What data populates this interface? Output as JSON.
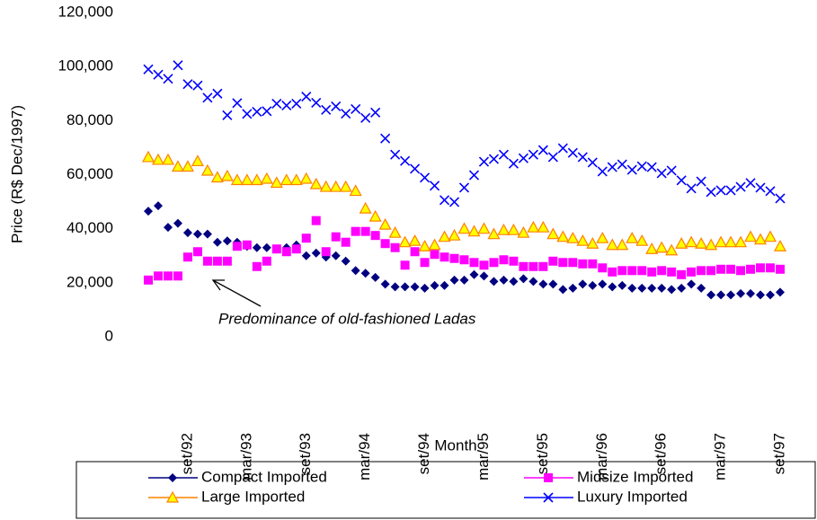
{
  "chart_data": {
    "type": "scatter",
    "y_label": "Price (R$ Dec/1997)",
    "x_label": "Month",
    "annotation": "Predominance of old-fashioned Ladas",
    "categories": [
      null,
      null,
      null,
      null,
      "set/92",
      null,
      null,
      null,
      null,
      null,
      "mar/93",
      null,
      null,
      null,
      null,
      null,
      "set/93",
      null,
      null,
      null,
      null,
      null,
      "mar/94",
      null,
      null,
      null,
      null,
      null,
      "set/94",
      null,
      null,
      null,
      null,
      null,
      "mar/95",
      null,
      null,
      null,
      null,
      null,
      "set/95",
      null,
      null,
      null,
      null,
      null,
      "mar/96",
      null,
      null,
      null,
      null,
      null,
      "set/96",
      null,
      null,
      null,
      null,
      null,
      "mar/97",
      null,
      null,
      null,
      null,
      null,
      "set/97"
    ],
    "ylim": [
      0,
      120000
    ],
    "yticks": [
      0,
      {
        "value": 20000,
        "label": "20,000"
      },
      {
        "value": 40000,
        "label": "40,000"
      },
      {
        "value": 60000,
        "label": "60,000"
      },
      {
        "value": 80000,
        "label": "80,000"
      },
      {
        "value": 100000,
        "label": "100,000"
      },
      {
        "value": 120000,
        "label": "120,000"
      }
    ],
    "series": [
      {
        "name": "Compact Imported",
        "color": "#000080",
        "marker": "diamond",
        "values": [
          46500,
          48500,
          40500,
          42000,
          38500,
          38000,
          38000,
          35000,
          35500,
          35000,
          33500,
          33000,
          33000,
          32500,
          33000,
          34000,
          30000,
          31000,
          29500,
          30000,
          28000,
          24500,
          23500,
          22000,
          19500,
          18500,
          18500,
          18500,
          18000,
          19000,
          19000,
          21000,
          21000,
          23000,
          22500,
          20500,
          21000,
          20500,
          21500,
          20500,
          19500,
          19500,
          17500,
          18000,
          19500,
          19000,
          19500,
          18500,
          19000,
          18000,
          18000,
          18000,
          18000,
          17500,
          18000,
          19500,
          18000,
          15500,
          15500,
          15500,
          16000,
          16000,
          15500,
          15500,
          16500
        ]
      },
      {
        "name": "Midsize Imported",
        "color": "#ff00ff",
        "marker": "square",
        "values": [
          21000,
          22500,
          22500,
          22500,
          29500,
          31500,
          28000,
          28000,
          28000,
          33500,
          34000,
          26000,
          28000,
          32500,
          31500,
          32500,
          36500,
          43000,
          31500,
          37000,
          35000,
          39000,
          39000,
          37500,
          34500,
          33000,
          26500,
          31500,
          27500,
          30500,
          29500,
          29000,
          28500,
          27500,
          26500,
          27500,
          28500,
          28000,
          26000,
          26000,
          26000,
          28000,
          27500,
          27500,
          27000,
          27000,
          25500,
          24000,
          24500,
          24500,
          24500,
          24000,
          24500,
          24000,
          23000,
          24000,
          24500,
          24500,
          25000,
          25000,
          24500,
          25000,
          25500,
          25500,
          25000
        ]
      },
      {
        "name": "Large Imported",
        "color": "#ff8000",
        "marker_fill": "#ffff00",
        "marker": "triangle",
        "values": [
          66500,
          65500,
          65500,
          63000,
          63000,
          65000,
          61500,
          59000,
          59500,
          58000,
          58000,
          58000,
          58500,
          57000,
          58000,
          58000,
          58500,
          56500,
          55500,
          55500,
          55500,
          54000,
          47500,
          44500,
          41500,
          38500,
          35000,
          35500,
          33500,
          34000,
          37000,
          37500,
          40000,
          39000,
          40000,
          38000,
          39500,
          39500,
          38500,
          40500,
          40500,
          38000,
          37000,
          36500,
          35500,
          34500,
          36500,
          34000,
          34000,
          36500,
          35500,
          32500,
          33000,
          32000,
          34500,
          35000,
          34500,
          34000,
          35000,
          35000,
          35000,
          37000,
          36000,
          37000,
          33500
        ]
      },
      {
        "name": "Luxury Imported",
        "color": "#0000ff",
        "marker": "x",
        "values": [
          99000,
          97000,
          95500,
          100500,
          93500,
          93000,
          88500,
          90000,
          82000,
          86500,
          82500,
          83300,
          83500,
          86300,
          85600,
          86300,
          88900,
          86600,
          84000,
          85300,
          82600,
          84300,
          81000,
          83000,
          73400,
          67400,
          65100,
          62200,
          58900,
          55900,
          50600,
          49900,
          55200,
          59800,
          64800,
          65800,
          67400,
          64100,
          66100,
          67400,
          69100,
          66500,
          69800,
          68100,
          66500,
          64500,
          61200,
          62800,
          63800,
          61800,
          63100,
          62800,
          60500,
          61500,
          57900,
          54900,
          57500,
          53600,
          54200,
          54200,
          55500,
          56900,
          55200,
          53900,
          51200
        ]
      }
    ]
  }
}
